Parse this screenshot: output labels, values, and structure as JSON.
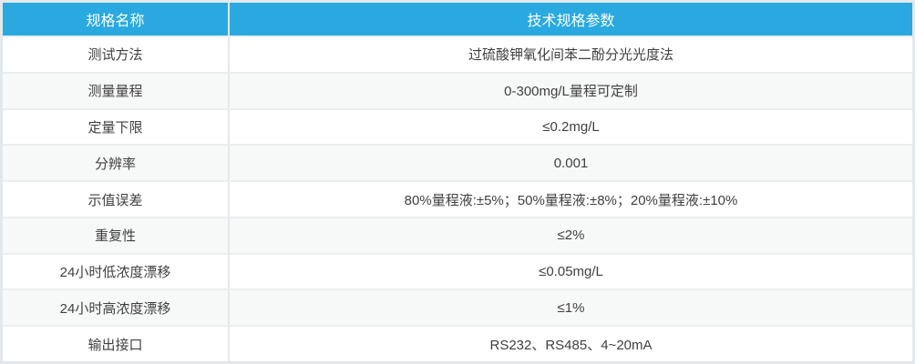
{
  "table": {
    "title_semantic": "technical-specification-table",
    "header": {
      "name_col": "规格名称",
      "value_col": "技术规格参数"
    },
    "rows": [
      {
        "name": "测试方法",
        "value": "过硫酸钾氧化间苯二酚分光光度法"
      },
      {
        "name": "测量量程",
        "value": "0-300mg/L量程可定制"
      },
      {
        "name": "定量下限",
        "value": "≤0.2mg/L"
      },
      {
        "name": "分辨率",
        "value": "0.001"
      },
      {
        "name": "示值误差",
        "value": "80%量程液:±5%；50%量程液:±8%；20%量程液:±10%"
      },
      {
        "name": "重复性",
        "value": "≤2%"
      },
      {
        "name": "24小时低浓度漂移",
        "value": "≤0.05mg/L"
      },
      {
        "name": "24小时高浓度漂移",
        "value": "≤1%"
      },
      {
        "name": "输出接口",
        "value": "RS232、RS485、4~20mA"
      }
    ],
    "colors": {
      "header_bg": "#29a9e0",
      "header_text": "#ffffff",
      "row_bg": "#ffffff",
      "row_alt_bg": "#f7f8f8",
      "text": "#404040",
      "border": "#ebeeef",
      "outer_border": "#e2e8eb",
      "col_divider": "#e3e9ec"
    }
  }
}
